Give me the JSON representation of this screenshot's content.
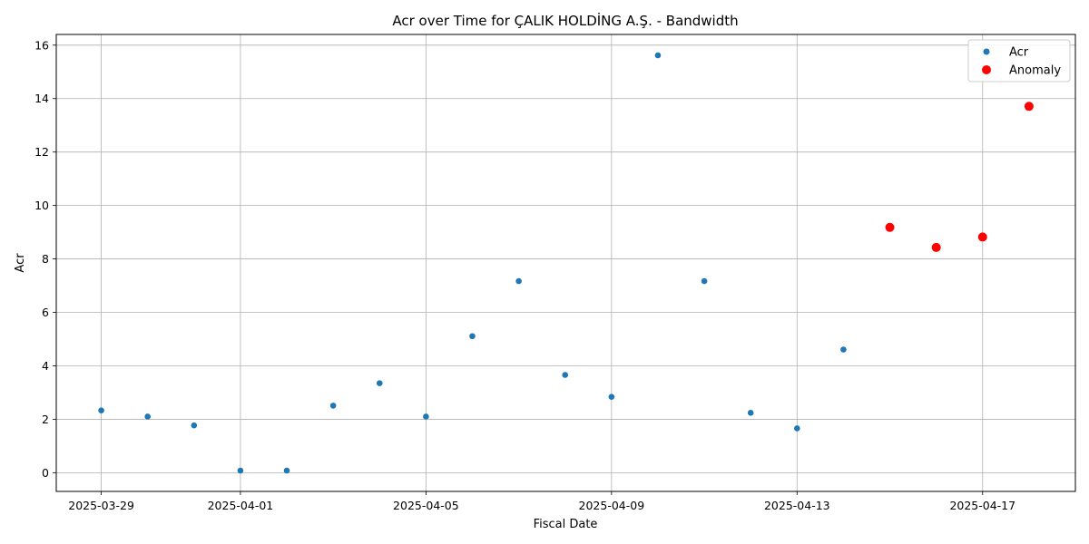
{
  "chart_data": {
    "type": "scatter",
    "title": "Acr over Time for ÇALIK HOLDİNG A.Ş. - Bandwidth",
    "xlabel": "Fiscal Date",
    "ylabel": "Acr",
    "x_tick_labels": [
      "2025-03-29",
      "2025-04-01",
      "2025-04-05",
      "2025-04-09",
      "2025-04-13",
      "2025-04-17"
    ],
    "x_tick_dates": [
      "2025-03-29",
      "2025-04-01",
      "2025-04-05",
      "2025-04-09",
      "2025-04-13",
      "2025-04-17"
    ],
    "y_ticks": [
      0,
      2,
      4,
      6,
      8,
      10,
      12,
      14,
      16
    ],
    "ylim": [
      -0.7,
      16.4
    ],
    "xlim": [
      "2025-03-28",
      "2025-04-19"
    ],
    "grid": true,
    "legend_position": "top-right",
    "series": [
      {
        "name": "Acr",
        "color": "#1f77b4",
        "points": [
          {
            "x": "2025-03-29",
            "y": 2.33
          },
          {
            "x": "2025-03-30",
            "y": 2.1
          },
          {
            "x": "2025-03-31",
            "y": 1.77
          },
          {
            "x": "2025-04-01",
            "y": 0.08
          },
          {
            "x": "2025-04-02",
            "y": 0.08
          },
          {
            "x": "2025-04-03",
            "y": 2.51
          },
          {
            "x": "2025-04-04",
            "y": 3.35
          },
          {
            "x": "2025-04-05",
            "y": 2.1
          },
          {
            "x": "2025-04-06",
            "y": 5.11
          },
          {
            "x": "2025-04-07",
            "y": 7.17
          },
          {
            "x": "2025-04-08",
            "y": 3.66
          },
          {
            "x": "2025-04-09",
            "y": 2.84
          },
          {
            "x": "2025-04-10",
            "y": 15.62
          },
          {
            "x": "2025-04-11",
            "y": 7.17
          },
          {
            "x": "2025-04-12",
            "y": 2.24
          },
          {
            "x": "2025-04-13",
            "y": 1.66
          },
          {
            "x": "2025-04-14",
            "y": 4.61
          },
          {
            "x": "2025-04-15",
            "y": 9.18
          },
          {
            "x": "2025-04-16",
            "y": 8.43
          },
          {
            "x": "2025-04-17",
            "y": 8.82
          },
          {
            "x": "2025-04-18",
            "y": 13.71
          }
        ]
      },
      {
        "name": "Anomaly",
        "color": "#ff0000",
        "points": [
          {
            "x": "2025-04-15",
            "y": 9.18
          },
          {
            "x": "2025-04-16",
            "y": 8.43
          },
          {
            "x": "2025-04-17",
            "y": 8.82
          },
          {
            "x": "2025-04-18",
            "y": 13.71
          }
        ]
      }
    ]
  }
}
